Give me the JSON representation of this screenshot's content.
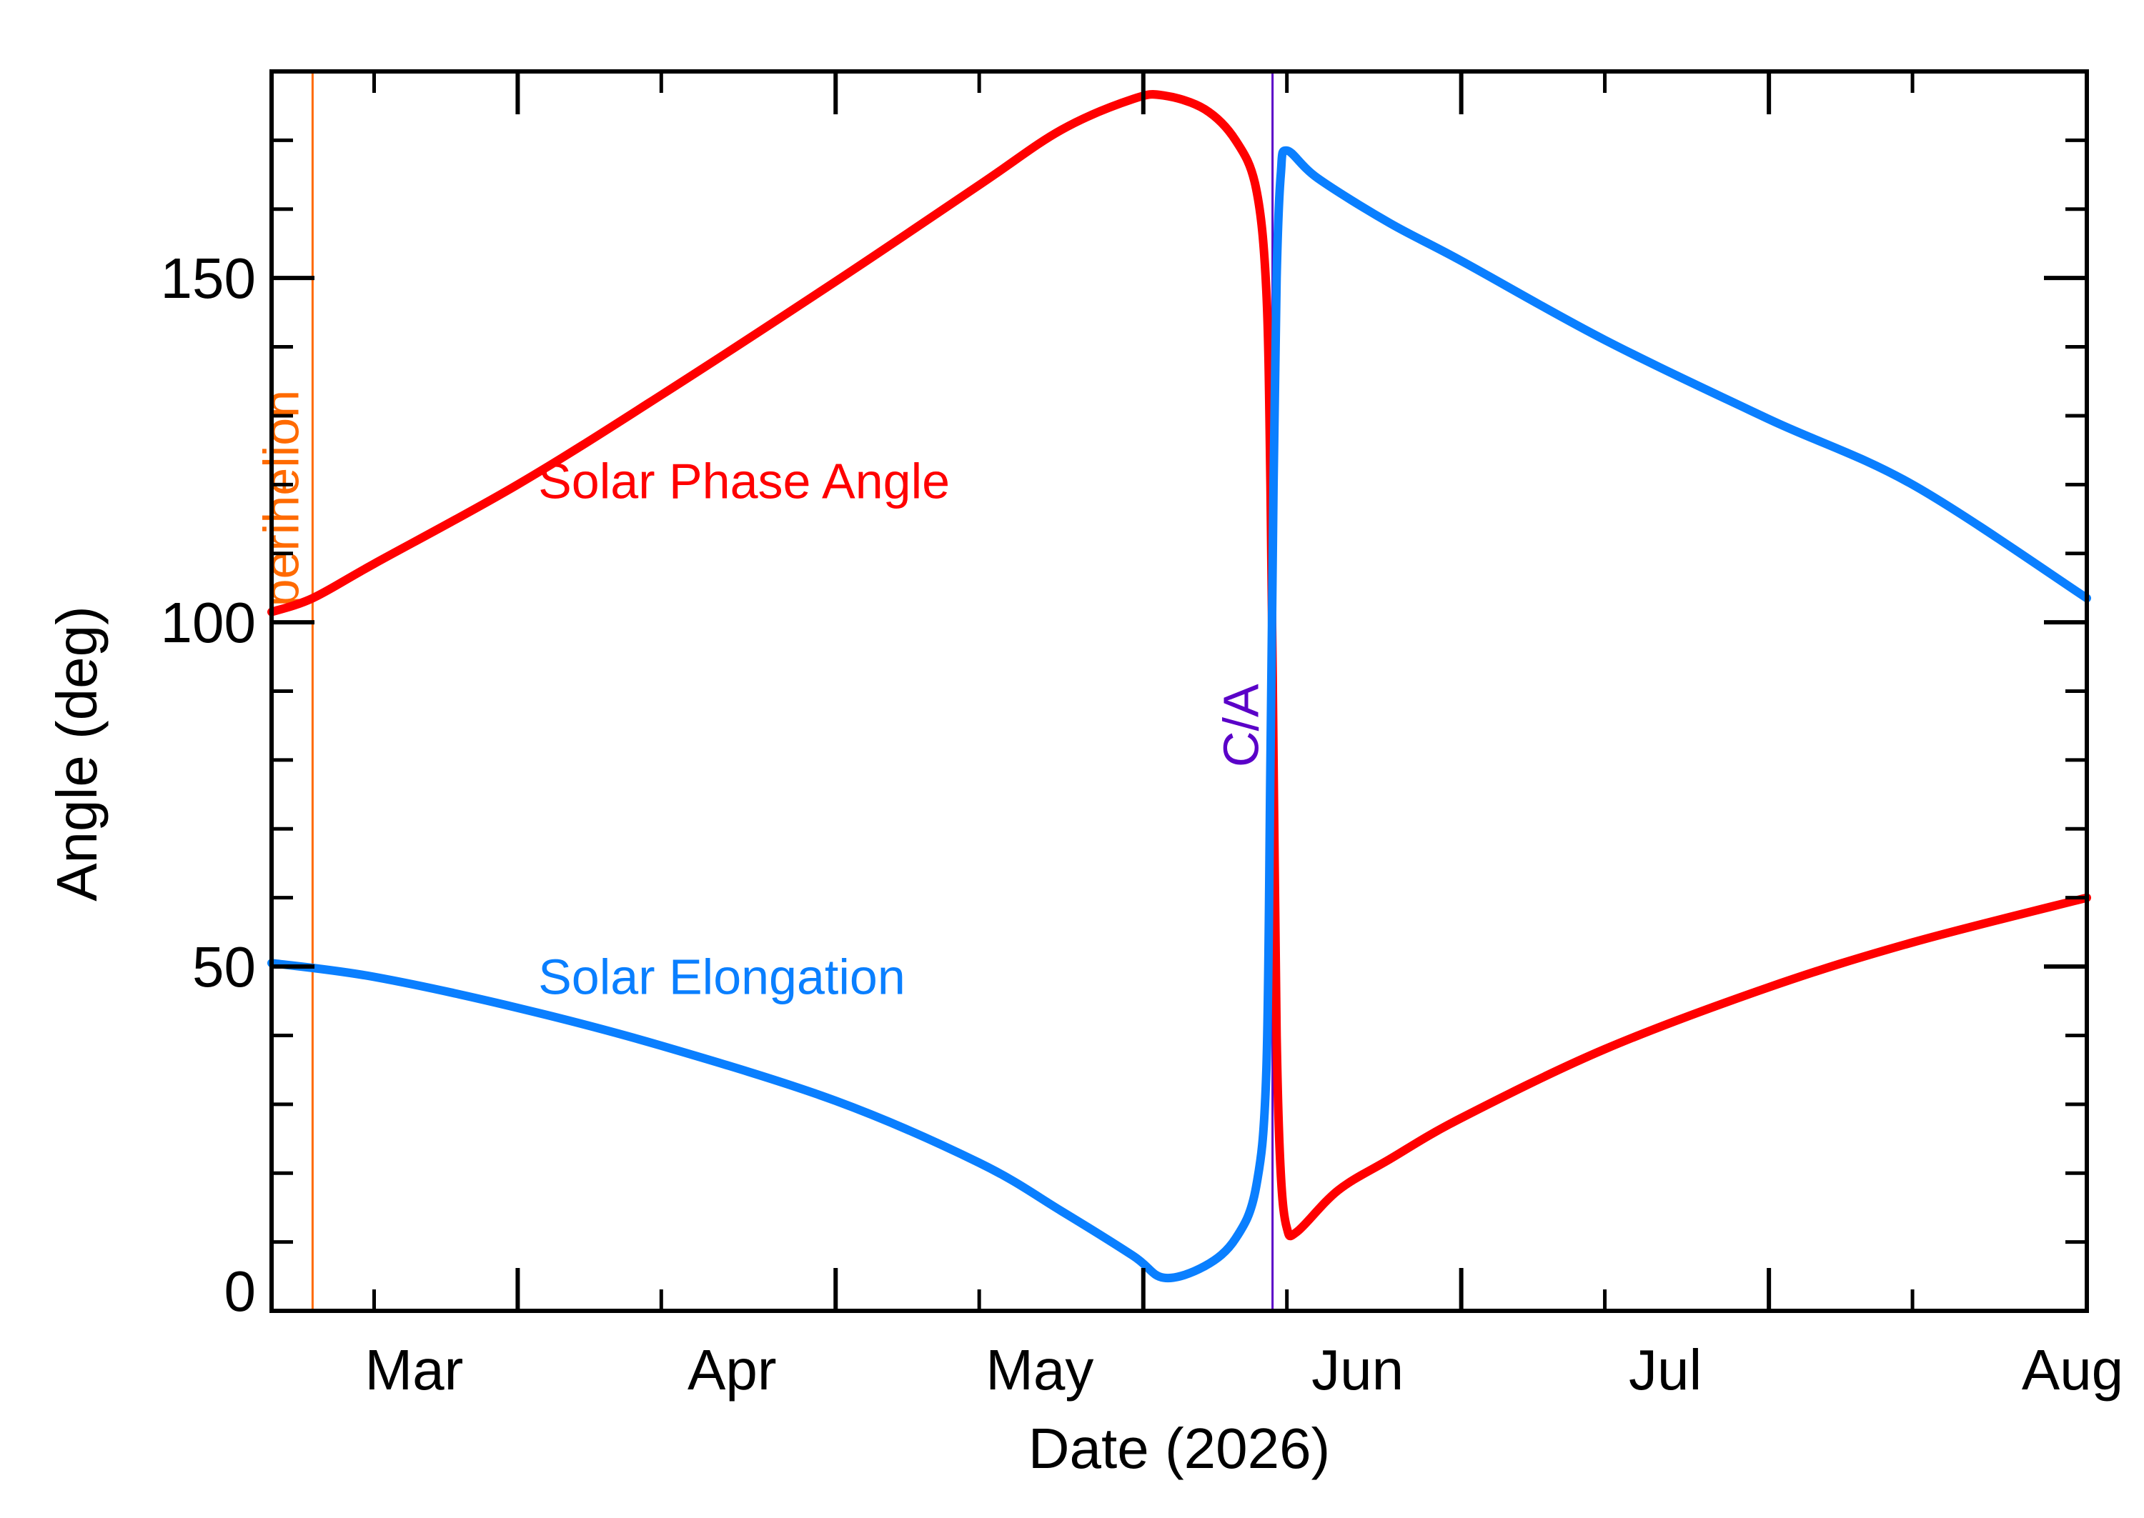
{
  "chart_data": {
    "type": "line",
    "title": "",
    "xlabel": "Date (2026)",
    "ylabel": "Angle (deg)",
    "x_unit": "date",
    "xlim": [
      "2026-02-05",
      "2026-08-01"
    ],
    "ylim": [
      0,
      180
    ],
    "x_ticks": [
      {
        "date": "2026-03-01",
        "label": "Mar"
      },
      {
        "date": "2026-04-01",
        "label": "Apr"
      },
      {
        "date": "2026-05-01",
        "label": "May"
      },
      {
        "date": "2026-06-01",
        "label": "Jun"
      },
      {
        "date": "2026-07-01",
        "label": "Jul"
      },
      {
        "date": "2026-08-01",
        "label": "Aug"
      }
    ],
    "x_minor_ticks": [
      "2026-02-15",
      "2026-03-15",
      "2026-04-15",
      "2026-05-15",
      "2026-06-15",
      "2026-07-15"
    ],
    "y_ticks": [
      {
        "value": 0,
        "label": "0"
      },
      {
        "value": 50,
        "label": "50"
      },
      {
        "value": 100,
        "label": "100"
      },
      {
        "value": 150,
        "label": "150"
      }
    ],
    "y_minor_step": 10,
    "grid": false,
    "legend": "in-plot text labels",
    "series": [
      {
        "name": "Solar Phase Angle",
        "color": "#ff0000",
        "points": [
          [
            "2026-02-05",
            101.5
          ],
          [
            "2026-02-09",
            103.5
          ],
          [
            "2026-02-15",
            108.5
          ],
          [
            "2026-03-01",
            120.0
          ],
          [
            "2026-03-15",
            133.0
          ],
          [
            "2026-04-01",
            149.5
          ],
          [
            "2026-04-15",
            163.5
          ],
          [
            "2026-04-23",
            171.5
          ],
          [
            "2026-04-30",
            176.0
          ],
          [
            "2026-05-03",
            176.5
          ],
          [
            "2026-05-07",
            174.5
          ],
          [
            "2026-05-10",
            170.0
          ],
          [
            "2026-05-12",
            163.0
          ],
          [
            "2026-05-13",
            148.0
          ],
          [
            "2026-05-13.4",
            120.0
          ],
          [
            "2026-05-13.7",
            80.0
          ],
          [
            "2026-05-14",
            40.0
          ],
          [
            "2026-05-14.4",
            20.0
          ],
          [
            "2026-05-15",
            12.0
          ],
          [
            "2026-05-16",
            11.5
          ],
          [
            "2026-05-20",
            17.5
          ],
          [
            "2026-05-25",
            22.0
          ],
          [
            "2026-06-01",
            28.0
          ],
          [
            "2026-06-15",
            38.0
          ],
          [
            "2026-07-01",
            47.0
          ],
          [
            "2026-07-15",
            53.5
          ],
          [
            "2026-08-01",
            60.0
          ]
        ]
      },
      {
        "name": "Solar Elongation",
        "color": "#0a7fff",
        "points": [
          [
            "2026-02-05",
            50.5
          ],
          [
            "2026-02-15",
            48.5
          ],
          [
            "2026-03-01",
            44.0
          ],
          [
            "2026-03-15",
            38.5
          ],
          [
            "2026-04-01",
            30.5
          ],
          [
            "2026-04-15",
            21.5
          ],
          [
            "2026-04-23",
            14.5
          ],
          [
            "2026-04-30",
            8.0
          ],
          [
            "2026-05-03",
            4.8
          ],
          [
            "2026-05-07",
            6.5
          ],
          [
            "2026-05-10",
            10.5
          ],
          [
            "2026-05-12",
            18.0
          ],
          [
            "2026-05-13",
            35.0
          ],
          [
            "2026-05-13.4",
            80.0
          ],
          [
            "2026-05-13.7",
            120.0
          ],
          [
            "2026-05-14",
            150.0
          ],
          [
            "2026-05-14.4",
            165.0
          ],
          [
            "2026-05-15",
            168.5
          ],
          [
            "2026-05-18",
            164.5
          ],
          [
            "2026-05-25",
            158.0
          ],
          [
            "2026-06-01",
            152.5
          ],
          [
            "2026-06-15",
            141.0
          ],
          [
            "2026-07-01",
            129.5
          ],
          [
            "2026-07-15",
            120.0
          ],
          [
            "2026-08-01",
            103.5
          ]
        ]
      }
    ],
    "series_labels": [
      {
        "text": "Solar Phase Angle",
        "color": "#ff0000",
        "at": [
          "2026-03-03",
          118
        ]
      },
      {
        "text": "Solar Elongation",
        "color": "#0a7fff",
        "at": [
          "2026-03-03",
          46
        ]
      }
    ],
    "vertical_markers": [
      {
        "label": "perihelion",
        "date": "2026-02-09",
        "color": "#ff6a00",
        "label_y": 118
      },
      {
        "label": "C/A",
        "date": "2026-05-13.6",
        "color": "#5a00c8",
        "label_y": 85
      }
    ]
  }
}
